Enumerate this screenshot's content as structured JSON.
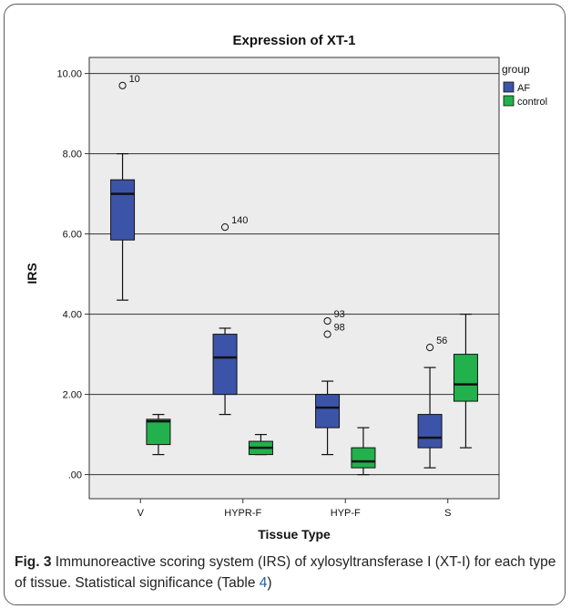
{
  "chart_data": {
    "type": "box",
    "title": "Expression of XT-1",
    "xlabel": "Tissue Type",
    "ylabel": "IRS",
    "ylim": [
      -0.6,
      10.4
    ],
    "yticks": [
      0,
      2,
      4,
      6,
      8,
      10
    ],
    "ytick_labels": [
      ".00",
      "2.00",
      "4.00",
      "6.00",
      "8.00",
      "10.00"
    ],
    "grid": "horizontal",
    "legend": {
      "title": "group",
      "placement": "top-right"
    },
    "categories": [
      "V",
      "HYPR-F",
      "HYP-F",
      "S"
    ],
    "series": [
      {
        "name": "AF",
        "color": "#3c54a8",
        "boxes": [
          {
            "category": "V",
            "min": 4.35,
            "q1": 5.85,
            "median": 7.0,
            "q3": 7.35,
            "max": 8.0,
            "outliers": [
              {
                "value": 9.7,
                "label": "10"
              }
            ]
          },
          {
            "category": "HYPR-F",
            "min": 1.5,
            "q1": 2.0,
            "median": 2.92,
            "q3": 3.5,
            "max": 3.65,
            "outliers": [
              {
                "value": 6.17,
                "label": "140"
              }
            ]
          },
          {
            "category": "HYP-F",
            "min": 0.5,
            "q1": 1.17,
            "median": 1.67,
            "q3": 2.0,
            "max": 2.33,
            "outliers": [
              {
                "value": 3.83,
                "label": "93"
              },
              {
                "value": 3.5,
                "label": "98"
              }
            ]
          },
          {
            "category": "S",
            "min": 0.17,
            "q1": 0.67,
            "median": 0.92,
            "q3": 1.5,
            "max": 2.67,
            "outliers": [
              {
                "value": 3.17,
                "label": "56"
              }
            ]
          }
        ]
      },
      {
        "name": "control",
        "color": "#22b14c",
        "boxes": [
          {
            "category": "V",
            "min": 0.5,
            "q1": 0.75,
            "median": 1.33,
            "q3": 1.38,
            "max": 1.5,
            "outliers": []
          },
          {
            "category": "HYPR-F",
            "min": 0.5,
            "q1": 0.5,
            "median": 0.67,
            "q3": 0.83,
            "max": 1.0,
            "outliers": []
          },
          {
            "category": "HYP-F",
            "min": 0.0,
            "q1": 0.17,
            "median": 0.33,
            "q3": 0.67,
            "max": 1.17,
            "outliers": []
          },
          {
            "category": "S",
            "min": 0.67,
            "q1": 1.83,
            "median": 2.25,
            "q3": 3.0,
            "max": 4.0,
            "outliers": []
          }
        ]
      }
    ]
  },
  "caption": {
    "label": "Fig. 3",
    "text_1": " Immunoreactive scoring system (IRS) of xylosyltransferase I (XT-I) for each type of tissue. Statistical significance (Table ",
    "ref": "4",
    "text_2": ")"
  }
}
